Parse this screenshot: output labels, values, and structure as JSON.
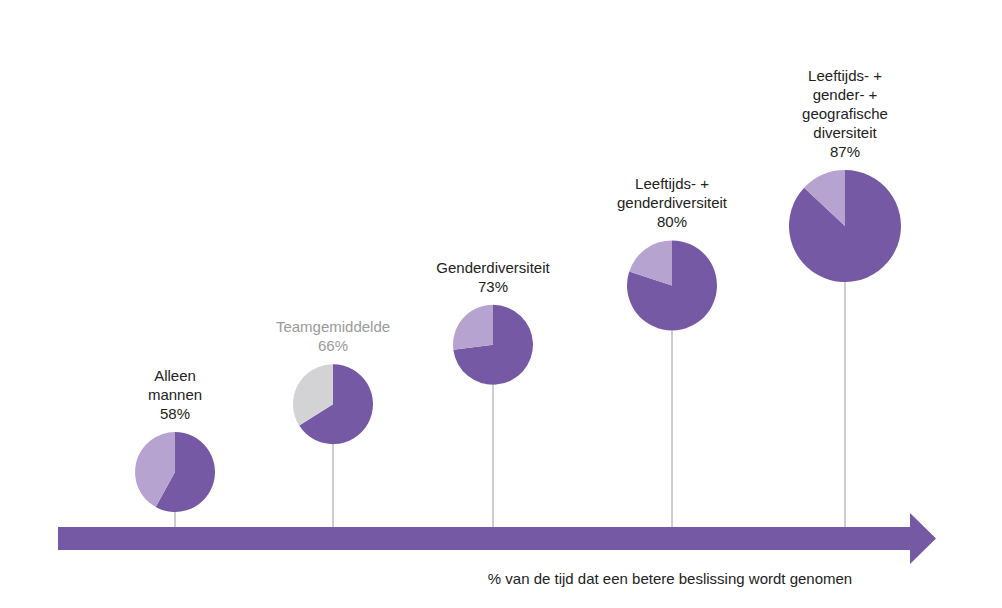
{
  "chart_data": {
    "type": "pie",
    "categories": [
      "Alleen\nmannen",
      "Teamgemiddelde",
      "Genderdiversiteit",
      "Leeftijds- +\ngenderdiversiteit",
      "Leeftijds- +\ngender- +\ngeografische\ndiversiteit"
    ],
    "values": [
      58,
      66,
      73,
      80,
      87
    ],
    "value_labels": [
      "58%",
      "66%",
      "73%",
      "80%",
      "87%"
    ],
    "color": "#7659a5",
    "colors": [
      "#b7a3d0",
      "#d3d3d5",
      "#b7a3d0",
      "#b7a3d0",
      "#b7a3d0"
    ],
    "x_label": "% van de tijd dat een betere beslissing wordt genomen"
  }
}
